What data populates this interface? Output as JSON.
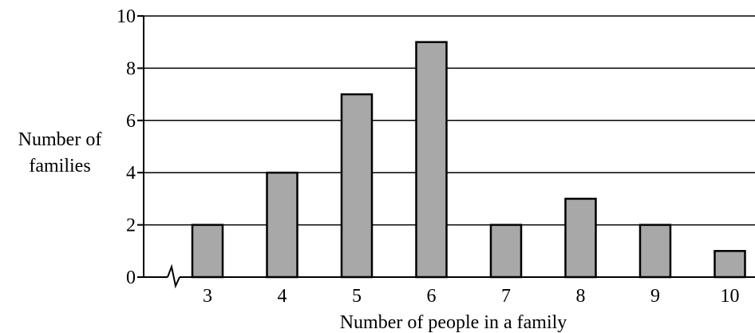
{
  "chart_data": {
    "type": "bar",
    "title": "",
    "xlabel": "Number of people in a family",
    "ylabel": [
      "Number of",
      "families"
    ],
    "categories": [
      "3",
      "4",
      "5",
      "6",
      "7",
      "8",
      "9",
      "10"
    ],
    "values": [
      2,
      4,
      7,
      9,
      2,
      3,
      2,
      1
    ],
    "ylim": [
      0,
      10
    ],
    "yticks": [
      "0",
      "2",
      "4",
      "6",
      "8",
      "10"
    ],
    "grid": true,
    "x_axis_break": true,
    "bar_color": "#a8a8a8"
  }
}
